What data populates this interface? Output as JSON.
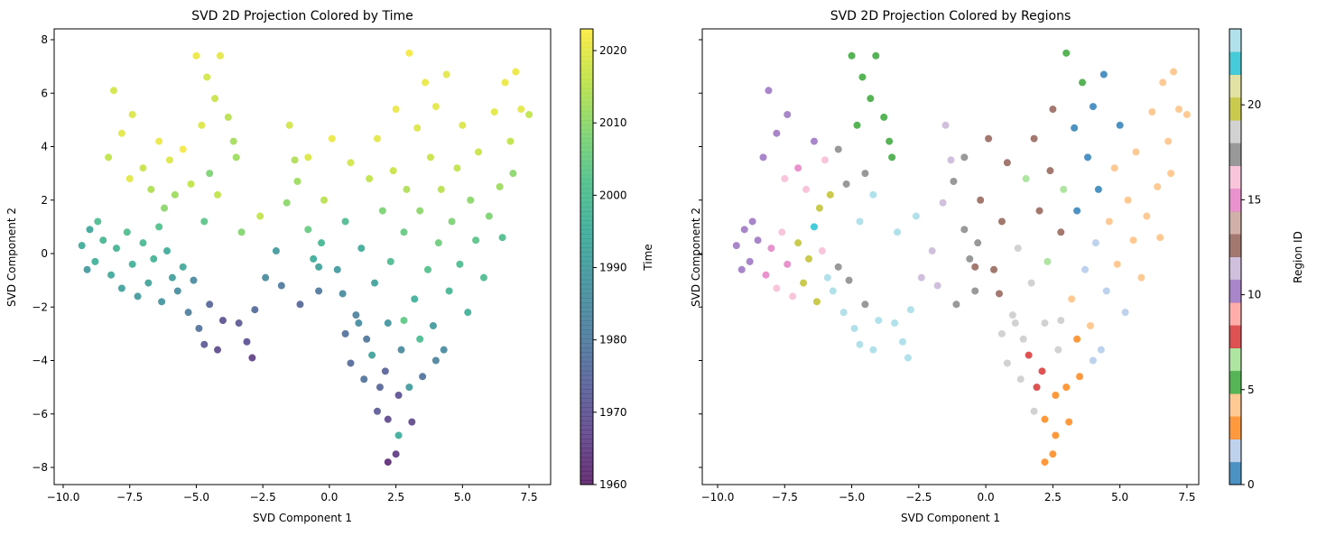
{
  "chart_data": {
    "type": "scatter",
    "point_fields": [
      "svd_component_1",
      "svd_component_2",
      "time",
      "region_id"
    ],
    "points": [
      [
        -9.3,
        0.3,
        1995,
        10
      ],
      [
        -9.0,
        0.9,
        1993,
        10
      ],
      [
        -8.8,
        -0.3,
        1996,
        10
      ],
      [
        -8.5,
        0.5,
        1998,
        10
      ],
      [
        -9.1,
        -0.6,
        1990,
        10
      ],
      [
        -8.7,
        1.2,
        2000,
        10
      ],
      [
        -8.2,
        -0.8,
        1994,
        15
      ],
      [
        -8.0,
        0.2,
        1997,
        15
      ],
      [
        -7.8,
        -1.3,
        1992,
        16
      ],
      [
        -7.6,
        0.8,
        2001,
        16
      ],
      [
        -7.4,
        -0.4,
        1996,
        15
      ],
      [
        -7.2,
        -1.6,
        1990,
        16
      ],
      [
        -7.0,
        0.4,
        1999,
        20
      ],
      [
        -6.8,
        -1.1,
        1993,
        20
      ],
      [
        -6.6,
        -0.2,
        1997,
        20
      ],
      [
        -6.4,
        1.0,
        2002,
        22
      ],
      [
        -6.3,
        -1.8,
        1988,
        20
      ],
      [
        -6.1,
        0.1,
        1995,
        16
      ],
      [
        -5.9,
        -0.9,
        1991,
        23
      ],
      [
        -5.7,
        -1.4,
        1986,
        23
      ],
      [
        -5.5,
        -0.5,
        1994,
        17
      ],
      [
        -5.3,
        -2.2,
        1982,
        23
      ],
      [
        -5.1,
        -1.0,
        1985,
        17
      ],
      [
        -4.9,
        -2.8,
        1978,
        23
      ],
      [
        -4.7,
        -3.4,
        1972,
        23
      ],
      [
        -4.5,
        -1.9,
        1975,
        17
      ],
      [
        -4.2,
        -3.6,
        1968,
        23
      ],
      [
        -4.0,
        -2.5,
        1970,
        23
      ],
      [
        -8.1,
        6.1,
        2018,
        10
      ],
      [
        -7.8,
        4.5,
        2020,
        10
      ],
      [
        -8.3,
        3.6,
        2016,
        10
      ],
      [
        -7.4,
        5.2,
        2019,
        10
      ],
      [
        -7.0,
        3.2,
        2017,
        15
      ],
      [
        -6.7,
        2.4,
        2014,
        16
      ],
      [
        -7.5,
        2.8,
        2020,
        16
      ],
      [
        -6.4,
        4.2,
        2021,
        10
      ],
      [
        -6.0,
        3.5,
        2019,
        16
      ],
      [
        -5.8,
        2.2,
        2012,
        20
      ],
      [
        -6.2,
        1.7,
        2010,
        20
      ],
      [
        -5.5,
        3.9,
        2022,
        17
      ],
      [
        -5.2,
        2.6,
        2016,
        17
      ],
      [
        -5.0,
        7.4,
        2021,
        5
      ],
      [
        -4.6,
        6.6,
        2018,
        5
      ],
      [
        -4.3,
        5.8,
        2017,
        5
      ],
      [
        -4.1,
        7.4,
        2020,
        5
      ],
      [
        -3.8,
        5.1,
        2015,
        5
      ],
      [
        -3.6,
        4.2,
        2013,
        5
      ],
      [
        -4.8,
        4.8,
        2019,
        5
      ],
      [
        -3.5,
        3.6,
        2012,
        5
      ],
      [
        -4.5,
        3.0,
        2008,
        17
      ],
      [
        -4.2,
        2.2,
        2016,
        23
      ],
      [
        -4.7,
        1.2,
        2003,
        23
      ],
      [
        -3.4,
        -2.6,
        1972,
        23
      ],
      [
        -3.1,
        -3.3,
        1970,
        23
      ],
      [
        -2.8,
        -2.1,
        1976,
        23
      ],
      [
        -2.9,
        -3.9,
        1966,
        23
      ],
      [
        -3.3,
        0.8,
        2009,
        23
      ],
      [
        -2.6,
        1.4,
        2016,
        23
      ],
      [
        -2.4,
        -0.9,
        1985,
        11
      ],
      [
        -2.0,
        0.1,
        1990,
        11
      ],
      [
        -1.8,
        -1.2,
        1980,
        11
      ],
      [
        -1.6,
        1.9,
        2010,
        11
      ],
      [
        -1.5,
        4.8,
        2018,
        11
      ],
      [
        -1.3,
        3.5,
        2014,
        11
      ],
      [
        -1.1,
        -1.9,
        1975,
        17
      ],
      [
        -1.2,
        2.7,
        2012,
        17
      ],
      [
        -0.8,
        0.9,
        2005,
        17
      ],
      [
        -0.6,
        -0.2,
        1995,
        17
      ],
      [
        -0.4,
        -1.4,
        1980,
        17
      ],
      [
        -0.3,
        0.4,
        1998,
        17
      ],
      [
        -0.8,
        3.6,
        2019,
        17
      ],
      [
        -0.2,
        2.0,
        2015,
        12
      ],
      [
        0.1,
        4.3,
        2021,
        12
      ],
      [
        -0.4,
        -0.5,
        1992,
        12
      ],
      [
        0.3,
        -0.6,
        1990,
        12
      ],
      [
        0.5,
        -1.5,
        1985,
        12
      ],
      [
        0.6,
        1.2,
        2000,
        12
      ],
      [
        0.8,
        3.4,
        2018,
        12
      ],
      [
        1.0,
        -2.3,
        1983,
        18
      ],
      [
        1.2,
        0.2,
        1995,
        18
      ],
      [
        1.4,
        -3.2,
        1979,
        18
      ],
      [
        1.5,
        2.8,
        2016,
        6
      ],
      [
        1.7,
        -1.1,
        1992,
        18
      ],
      [
        1.8,
        4.3,
        2020,
        12
      ],
      [
        2.0,
        1.6,
        2008,
        12
      ],
      [
        2.1,
        -4.4,
        1974,
        8
      ],
      [
        2.2,
        -2.6,
        1988,
        18
      ],
      [
        2.3,
        -0.3,
        2000,
        6
      ],
      [
        2.4,
        3.1,
        2017,
        12
      ],
      [
        2.5,
        5.4,
        2021,
        12
      ],
      [
        2.6,
        -5.3,
        1970,
        3
      ],
      [
        2.7,
        -3.6,
        1985,
        18
      ],
      [
        2.8,
        0.8,
        2005,
        12
      ],
      [
        2.9,
        2.4,
        2014,
        6
      ],
      [
        3.0,
        7.5,
        2022,
        5
      ],
      [
        3.1,
        -6.3,
        1968,
        3
      ],
      [
        3.2,
        -1.7,
        1996,
        4
      ],
      [
        3.3,
        4.7,
        2019,
        0
      ],
      [
        3.4,
        1.6,
        2010,
        0
      ],
      [
        3.5,
        -4.6,
        1978,
        3
      ],
      [
        3.6,
        6.4,
        2021,
        5
      ],
      [
        3.7,
        -0.6,
        2002,
        2
      ],
      [
        3.8,
        3.6,
        2017,
        0
      ],
      [
        3.9,
        -2.7,
        1990,
        4
      ],
      [
        4.0,
        5.5,
        2020,
        0
      ],
      [
        4.1,
        0.4,
        2006,
        2
      ],
      [
        4.2,
        2.4,
        2015,
        0
      ],
      [
        4.3,
        -3.6,
        1985,
        2
      ],
      [
        4.4,
        6.7,
        2020,
        0
      ],
      [
        4.5,
        -1.4,
        1998,
        2
      ],
      [
        4.6,
        1.2,
        2008,
        4
      ],
      [
        4.8,
        3.2,
        2016,
        4
      ],
      [
        4.9,
        -0.4,
        2000,
        4
      ],
      [
        5.0,
        4.8,
        2019,
        0
      ],
      [
        5.2,
        -2.2,
        1996,
        2
      ],
      [
        5.3,
        2.0,
        2010,
        4
      ],
      [
        5.5,
        0.5,
        2003,
        4
      ],
      [
        5.6,
        3.8,
        2017,
        4
      ],
      [
        5.8,
        -0.9,
        2000,
        4
      ],
      [
        6.0,
        1.4,
        2008,
        4
      ],
      [
        6.2,
        5.3,
        2020,
        4
      ],
      [
        6.4,
        2.5,
        2012,
        4
      ],
      [
        6.6,
        6.4,
        2021,
        4
      ],
      [
        6.8,
        4.2,
        2016,
        4
      ],
      [
        7.0,
        6.8,
        2021,
        4
      ],
      [
        7.2,
        5.4,
        2020,
        4
      ],
      [
        7.5,
        5.2,
        2016,
        4
      ],
      [
        6.9,
        3.0,
        2010,
        4
      ],
      [
        6.5,
        0.6,
        2001,
        4
      ],
      [
        1.9,
        -5.0,
        1975,
        8
      ],
      [
        2.2,
        -6.2,
        1968,
        3
      ],
      [
        2.5,
        -7.5,
        1965,
        3
      ],
      [
        2.2,
        -7.8,
        1962,
        3
      ],
      [
        2.6,
        -6.8,
        1995,
        3
      ],
      [
        1.8,
        -5.9,
        1972,
        18
      ],
      [
        1.3,
        -4.7,
        1978,
        18
      ],
      [
        0.8,
        -4.1,
        1976,
        18
      ],
      [
        1.6,
        -3.8,
        1992,
        8
      ],
      [
        3.0,
        -5.0,
        1990,
        3
      ],
      [
        3.4,
        -3.2,
        2000,
        3
      ],
      [
        2.8,
        -2.5,
        2004,
        18
      ],
      [
        4.0,
        -4.0,
        1983,
        2
      ],
      [
        1.1,
        -2.6,
        1986,
        18
      ],
      [
        0.6,
        -3.0,
        1978,
        18
      ]
    ],
    "xlim": [
      -10.5,
      8.3
    ],
    "ylim": [
      -8.6,
      8.4
    ],
    "x_ticks": [
      "−10.0",
      "−7.5",
      "−5.0",
      "−2.5",
      "0.0",
      "2.5",
      "5.0",
      "7.5"
    ],
    "y_ticks": [
      "−8",
      "−6",
      "−4",
      "−2",
      "0",
      "2",
      "4",
      "6",
      "8"
    ],
    "grid": false,
    "charts": [
      {
        "title": "SVD 2D Projection Colored by Time",
        "xlabel": "SVD Component 1",
        "ylabel": "SVD Component 2",
        "color_field": "time",
        "colormap": "viridis",
        "colorbar_label": "Time",
        "colorbar_range": [
          1960,
          2023
        ],
        "colorbar_ticks": [
          "1960",
          "1970",
          "1980",
          "1990",
          "2000",
          "2010",
          "2020"
        ],
        "alpha": 0.8
      },
      {
        "title": "SVD 2D Projection Colored by Regions",
        "xlabel": "SVD Component 1",
        "ylabel": "SVD Component 2",
        "color_field": "region_id",
        "colormap": "tab20",
        "colorbar_label": "Region ID",
        "colorbar_range": [
          0,
          24
        ],
        "colorbar_ticks": [
          "0",
          "5",
          "10",
          "15",
          "20"
        ],
        "alpha": 0.8
      }
    ],
    "colors": {
      "viridis": [
        "#440154",
        "#482878",
        "#3e4989",
        "#31688e",
        "#26828e",
        "#1f9e89",
        "#35b779",
        "#6ece58",
        "#b5de2b",
        "#fde725"
      ],
      "tab20": [
        "#1f77b4",
        "#aec7e8",
        "#ff7f0e",
        "#ffbb78",
        "#2ca02c",
        "#98df8a",
        "#d62728",
        "#ff9896",
        "#9467bd",
        "#c5b0d5",
        "#8c564b",
        "#c49c94",
        "#e377c2",
        "#f7b6d2",
        "#7f7f7f",
        "#c7c7c7",
        "#bcbd22",
        "#dbdb8d",
        "#17becf",
        "#9edae5"
      ]
    }
  }
}
